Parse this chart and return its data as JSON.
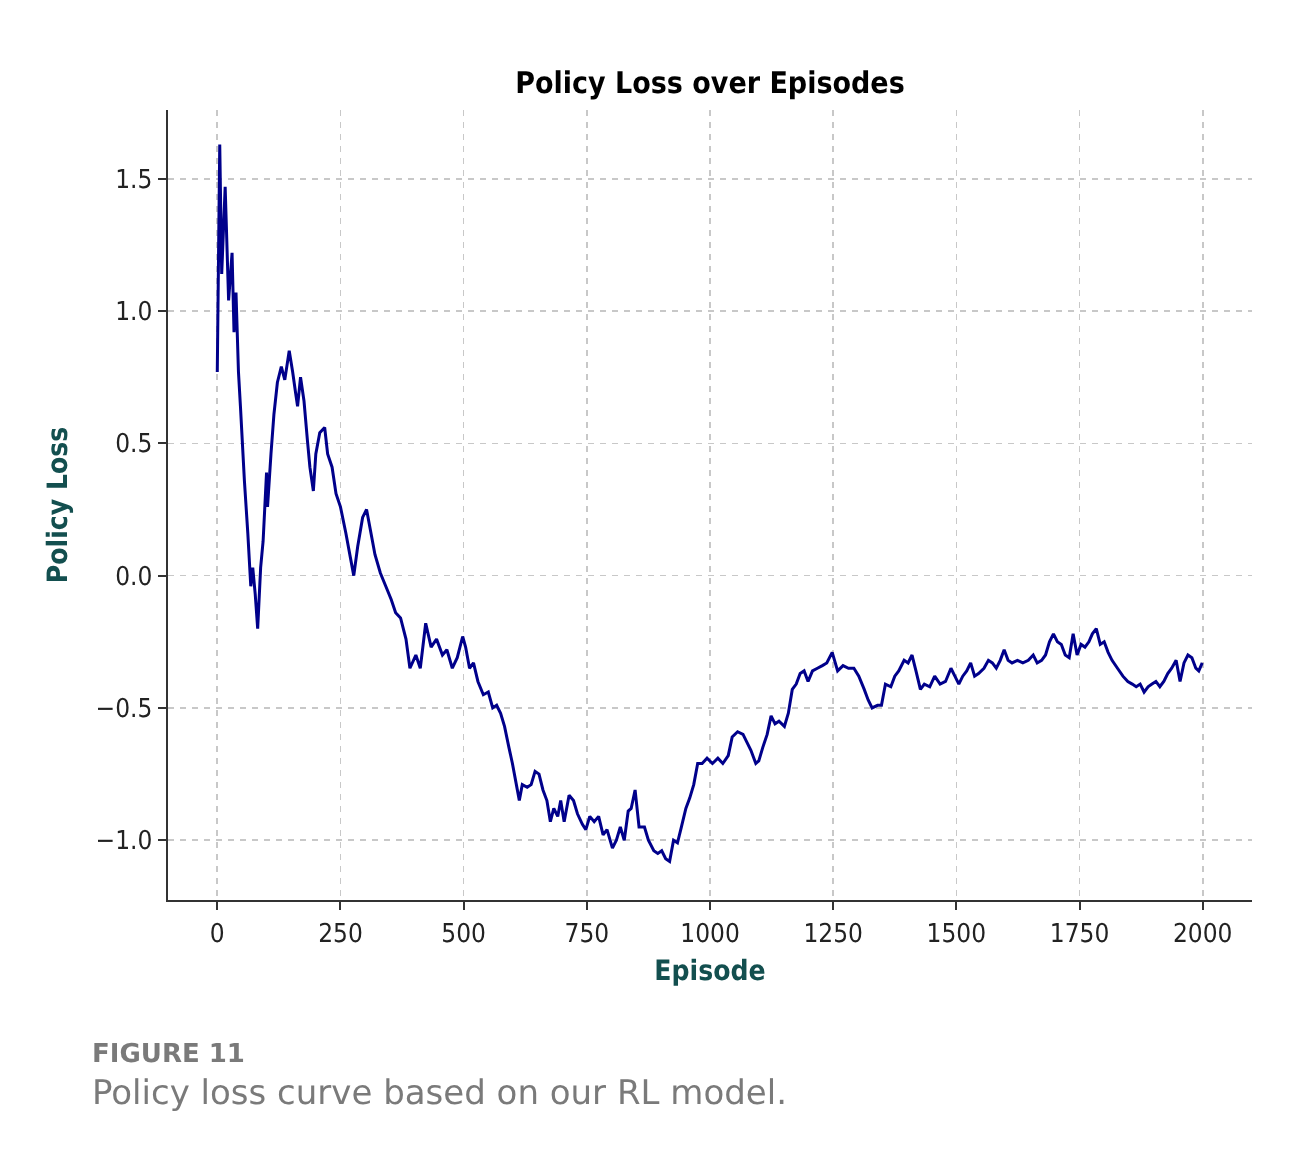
{
  "chart_data": {
    "type": "line",
    "title": "Policy Loss over Episodes",
    "xlabel": "Episode",
    "ylabel": "Policy Loss",
    "annotations": [
      "FIGURE 11",
      "Policy loss curve based on our RL model."
    ],
    "x": [
      0,
      5,
      9,
      16,
      23,
      30,
      34,
      38,
      43,
      47,
      55,
      62,
      68,
      72,
      77,
      82,
      88,
      93,
      100,
      102,
      109,
      115,
      122,
      130,
      137,
      146,
      153,
      159,
      163,
      169,
      176,
      183,
      188,
      195,
      200,
      208,
      218,
      224,
      233,
      241,
      250,
      261,
      270,
      277,
      285,
      295,
      303,
      312,
      320,
      331,
      342,
      353,
      362,
      372,
      383,
      391,
      403,
      412,
      423,
      434,
      445,
      457,
      466,
      477,
      487,
      498,
      504,
      512,
      520,
      529,
      540,
      550,
      559,
      567,
      575,
      583,
      592,
      599,
      607,
      613,
      619,
      629,
      637,
      645,
      653,
      661,
      669,
      676,
      683,
      691,
      697,
      704,
      714,
      723,
      731,
      741,
      748,
      756,
      765,
      774,
      783,
      791,
      802,
      810,
      818,
      826,
      834,
      840,
      848,
      856,
      867,
      875,
      886,
      894,
      902,
      910,
      918,
      926,
      934,
      942,
      951,
      959,
      967,
      975,
      984,
      994,
      1005,
      1016,
      1026,
      1037,
      1045,
      1056,
      1067,
      1075,
      1083,
      1093,
      1099,
      1107,
      1116,
      1124,
      1132,
      1140,
      1151,
      1159,
      1167,
      1175,
      1183,
      1191,
      1199,
      1208,
      1218,
      1228,
      1237,
      1248,
      1259,
      1270,
      1281,
      1292,
      1302,
      1313,
      1321,
      1329,
      1340,
      1348,
      1356,
      1367,
      1375,
      1383,
      1394,
      1402,
      1410,
      1418,
      1427,
      1435,
      1446,
      1456,
      1467,
      1478,
      1489,
      1497,
      1505,
      1513,
      1521,
      1529,
      1537,
      1545,
      1556,
      1565,
      1573,
      1581,
      1589,
      1597,
      1605,
      1613,
      1624,
      1635,
      1646,
      1656,
      1664,
      1673,
      1681,
      1689,
      1697,
      1705,
      1713,
      1721,
      1729,
      1737,
      1745,
      1753,
      1761,
      1769,
      1776,
      1784,
      1792,
      1800,
      1808,
      1816,
      1827,
      1838,
      1848,
      1857,
      1865,
      1873,
      1881,
      1889,
      1897,
      1905,
      1913,
      1921,
      1929,
      1937,
      1946,
      1954,
      1962,
      1970,
      1978,
      1986,
      1992,
      1999
    ],
    "series": [
      {
        "color": "#00008b",
        "values": [
          0.77,
          1.63,
          1.14,
          1.47,
          1.04,
          1.22,
          0.92,
          1.07,
          0.77,
          0.64,
          0.36,
          0.16,
          -0.04,
          0.03,
          -0.07,
          -0.2,
          0.03,
          0.13,
          0.39,
          0.26,
          0.46,
          0.61,
          0.73,
          0.79,
          0.74,
          0.85,
          0.77,
          0.69,
          0.64,
          0.75,
          0.66,
          0.51,
          0.41,
          0.32,
          0.46,
          0.54,
          0.56,
          0.46,
          0.41,
          0.31,
          0.26,
          0.16,
          0.07,
          0.0,
          0.11,
          0.22,
          0.25,
          0.16,
          0.08,
          0.01,
          -0.04,
          -0.09,
          -0.14,
          -0.16,
          -0.24,
          -0.35,
          -0.3,
          -0.35,
          -0.18,
          -0.27,
          -0.24,
          -0.3,
          -0.28,
          -0.35,
          -0.31,
          -0.23,
          -0.27,
          -0.35,
          -0.33,
          -0.4,
          -0.45,
          -0.44,
          -0.5,
          -0.49,
          -0.52,
          -0.57,
          -0.65,
          -0.71,
          -0.79,
          -0.85,
          -0.79,
          -0.8,
          -0.79,
          -0.74,
          -0.75,
          -0.81,
          -0.85,
          -0.93,
          -0.88,
          -0.91,
          -0.85,
          -0.93,
          -0.83,
          -0.85,
          -0.9,
          -0.94,
          -0.96,
          -0.91,
          -0.93,
          -0.91,
          -0.98,
          -0.96,
          -1.03,
          -1.0,
          -0.95,
          -1.0,
          -0.89,
          -0.88,
          -0.81,
          -0.95,
          -0.95,
          -1.0,
          -1.04,
          -1.05,
          -1.04,
          -1.07,
          -1.08,
          -1.0,
          -1.01,
          -0.95,
          -0.88,
          -0.84,
          -0.79,
          -0.71,
          -0.71,
          -0.69,
          -0.71,
          -0.69,
          -0.71,
          -0.68,
          -0.61,
          -0.59,
          -0.6,
          -0.63,
          -0.66,
          -0.71,
          -0.7,
          -0.65,
          -0.6,
          -0.53,
          -0.56,
          -0.55,
          -0.57,
          -0.52,
          -0.43,
          -0.41,
          -0.37,
          -0.36,
          -0.4,
          -0.36,
          -0.35,
          -0.34,
          -0.33,
          -0.29,
          -0.36,
          -0.34,
          -0.35,
          -0.35,
          -0.38,
          -0.43,
          -0.47,
          -0.5,
          -0.49,
          -0.49,
          -0.41,
          -0.42,
          -0.38,
          -0.36,
          -0.32,
          -0.33,
          -0.3,
          -0.36,
          -0.43,
          -0.41,
          -0.42,
          -0.38,
          -0.41,
          -0.4,
          -0.35,
          -0.38,
          -0.41,
          -0.38,
          -0.36,
          -0.33,
          -0.38,
          -0.37,
          -0.35,
          -0.32,
          -0.33,
          -0.35,
          -0.32,
          -0.28,
          -0.32,
          -0.33,
          -0.32,
          -0.33,
          -0.32,
          -0.3,
          -0.33,
          -0.32,
          -0.3,
          -0.25,
          -0.22,
          -0.25,
          -0.26,
          -0.3,
          -0.31,
          -0.22,
          -0.3,
          -0.26,
          -0.27,
          -0.25,
          -0.22,
          -0.2,
          -0.26,
          -0.25,
          -0.29,
          -0.32,
          -0.35,
          -0.38,
          -0.4,
          -0.41,
          -0.42,
          -0.41,
          -0.44,
          -0.42,
          -0.41,
          -0.4,
          -0.42,
          -0.4,
          -0.37,
          -0.35,
          -0.32,
          -0.4,
          -0.33,
          -0.3,
          -0.31,
          -0.35,
          -0.36,
          -0.33
        ]
      }
    ],
    "xlim": [
      -100,
      2100
    ],
    "ylim": [
      -1.226,
      1.76
    ],
    "xticks": [
      0,
      250,
      500,
      750,
      1000,
      1250,
      1500,
      1750,
      2000
    ],
    "yticks": [
      {
        "value": -1,
        "label": "−1.0"
      },
      {
        "value": -0.5,
        "label": "−0.5"
      },
      {
        "value": 0,
        "label": "0.0"
      },
      {
        "value": 0.5,
        "label": "0.5"
      },
      {
        "value": 1,
        "label": "1.0"
      },
      {
        "value": 1.5,
        "label": "1.5"
      }
    ],
    "grid": true,
    "line_style": "solid"
  }
}
